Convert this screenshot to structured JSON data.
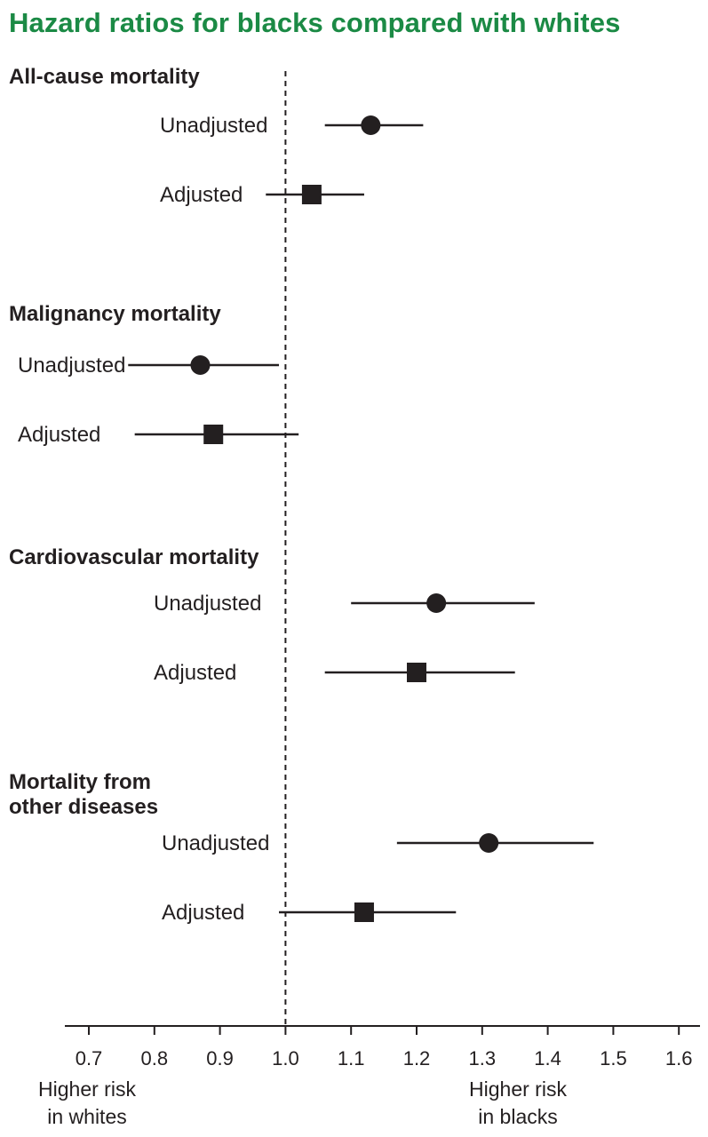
{
  "chart_data": {
    "type": "forest",
    "title": "Hazard ratios for blacks compared with whites",
    "reference_value": 1.0,
    "xlim": [
      0.67,
      1.63
    ],
    "ticks": [
      "0.7",
      "0.8",
      "0.9",
      "1.0",
      "1.1",
      "1.2",
      "1.3",
      "1.4",
      "1.5",
      "1.6"
    ],
    "annotations": {
      "left": [
        "Higher risk",
        "in whites"
      ],
      "right": [
        "Higher risk",
        "in blacks"
      ]
    },
    "legend_markers": {
      "Unadjusted": "circle",
      "Adjusted": "square"
    },
    "groups": [
      {
        "name_lines": [
          "All-cause mortality"
        ],
        "rows": [
          {
            "label": "Unadjusted",
            "marker": "circle",
            "hr": 1.13,
            "lo": 1.06,
            "hi": 1.21
          },
          {
            "label": "Adjusted",
            "marker": "square",
            "hr": 1.04,
            "lo": 0.97,
            "hi": 1.12
          }
        ]
      },
      {
        "name_lines": [
          "Malignancy mortality"
        ],
        "rows": [
          {
            "label": "Unadjusted",
            "marker": "circle",
            "hr": 0.87,
            "lo": 0.76,
            "hi": 0.99
          },
          {
            "label": "Adjusted",
            "marker": "square",
            "hr": 0.89,
            "lo": 0.77,
            "hi": 1.02
          }
        ]
      },
      {
        "name_lines": [
          "Cardiovascular mortality"
        ],
        "rows": [
          {
            "label": "Unadjusted",
            "marker": "circle",
            "hr": 1.23,
            "lo": 1.1,
            "hi": 1.38
          },
          {
            "label": "Adjusted",
            "marker": "square",
            "hr": 1.2,
            "lo": 1.06,
            "hi": 1.35
          }
        ]
      },
      {
        "name_lines": [
          "Mortality from",
          "other diseases"
        ],
        "rows": [
          {
            "label": "Unadjusted",
            "marker": "circle",
            "hr": 1.31,
            "lo": 1.17,
            "hi": 1.47
          },
          {
            "label": "Adjusted",
            "marker": "square",
            "hr": 1.12,
            "lo": 0.99,
            "hi": 1.26
          }
        ]
      }
    ]
  },
  "colors": {
    "title": "#1b8a45",
    "ink": "#231f20"
  }
}
